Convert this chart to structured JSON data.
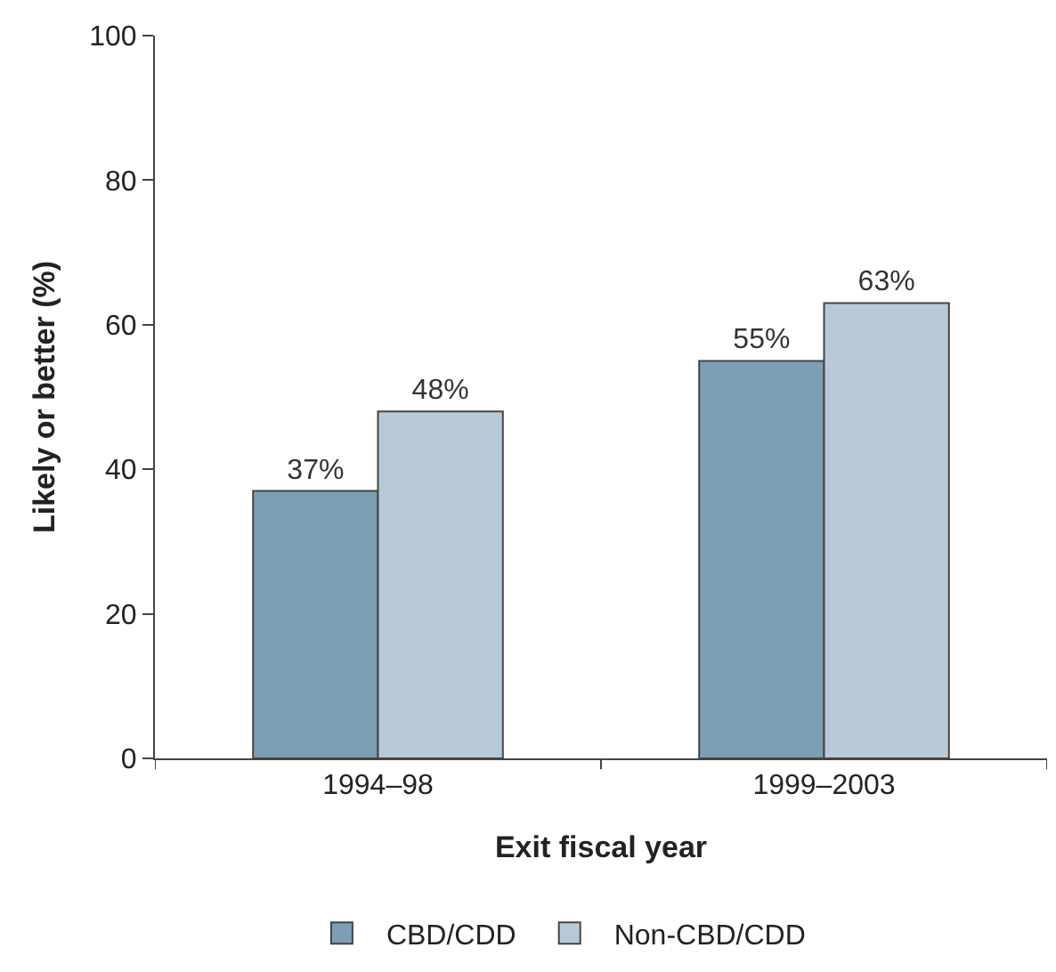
{
  "chart_data": {
    "type": "bar",
    "xlabel": "Exit fiscal year",
    "ylabel": "Likely or better (%)",
    "categories": [
      "1994–98",
      "1999–2003"
    ],
    "series": [
      {
        "name": "CBD/CDD",
        "color": "#7d9fb5",
        "values": [
          37,
          55
        ],
        "value_labels": [
          "37%",
          "55%"
        ]
      },
      {
        "name": "Non-CBD/CDD",
        "color": "#b8cad8",
        "values": [
          48,
          63
        ],
        "value_labels": [
          "48%",
          "63%"
        ]
      }
    ],
    "ylim": [
      0,
      100
    ],
    "yticks": [
      0,
      20,
      40,
      60,
      80,
      100
    ],
    "grid": false,
    "legend": "bottom"
  }
}
